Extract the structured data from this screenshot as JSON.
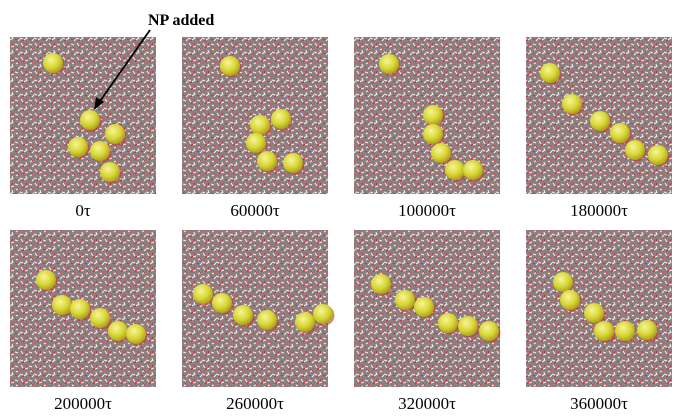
{
  "annotation": "NP added",
  "panels": [
    {
      "label": "0τ"
    },
    {
      "label": "60000τ"
    },
    {
      "label": "100000τ"
    },
    {
      "label": "180000τ"
    },
    {
      "label": "200000τ"
    },
    {
      "label": "260000τ"
    },
    {
      "label": "320000τ"
    },
    {
      "label": "360000τ"
    }
  ]
}
